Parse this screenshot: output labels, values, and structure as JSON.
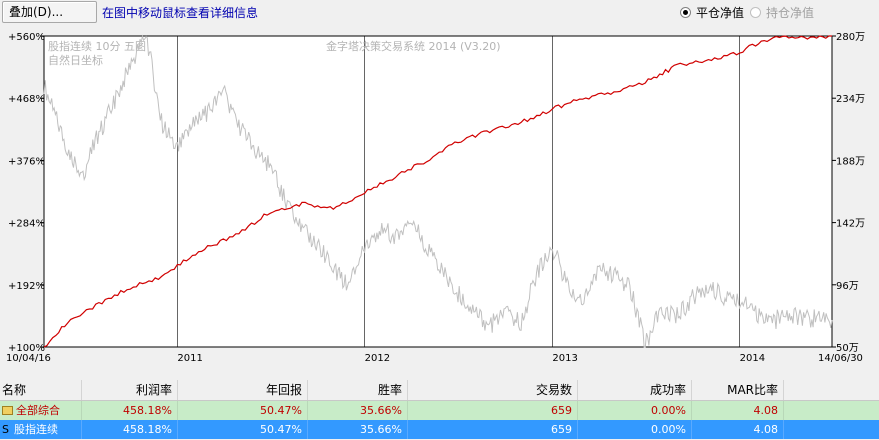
{
  "toolbar": {
    "overlay_label": "叠加(D)...",
    "hint_text": "在图中移动鼠标查看详细信息",
    "radio_closed": "平仓净值",
    "radio_open": "持仓净值",
    "radio_selected": "平仓净值"
  },
  "chart_data": {
    "type": "line",
    "title": "金字塔决策交易系统 2014 (V3.20)",
    "watermark_lines": [
      "股指连续 10分 五图",
      "自然日坐标"
    ],
    "x_start_label": "10/04/16",
    "x_end_label": "14/06/30",
    "x_tick_labels": [
      "2011",
      "2012",
      "2013",
      "2014"
    ],
    "left_axis": {
      "ticks": [
        "+560%",
        "+468%",
        "+376%",
        "+284%",
        "+192%",
        "+100%"
      ],
      "values": [
        560,
        468,
        376,
        284,
        192,
        100
      ],
      "range": [
        100,
        560
      ]
    },
    "right_axis": {
      "ticks": [
        "280万",
        "234万",
        "188万",
        "142万",
        "96万",
        "50万"
      ],
      "values": [
        280,
        234,
        188,
        142,
        96,
        50
      ],
      "range": [
        50,
        280
      ],
      "unit": "万"
    },
    "series": [
      {
        "color": "#d00000",
        "axis": "right",
        "x": [
          "2010-04-16",
          "2010-06-01",
          "2010-08-01",
          "2010-10-01",
          "2010-12-01",
          "2011-01-01",
          "2011-03-01",
          "2011-05-01",
          "2011-07-01",
          "2011-09-01",
          "2011-11-01",
          "2012-01-01",
          "2012-03-01",
          "2012-05-01",
          "2012-07-01",
          "2012-09-01",
          "2012-11-01",
          "2013-01-01",
          "2013-03-01",
          "2013-05-01",
          "2013-07-01",
          "2013-09-01",
          "2013-11-01",
          "2014-01-01",
          "2014-02-01",
          "2014-03-01",
          "2014-04-01",
          "2014-05-01",
          "2014-06-30"
        ],
        "values": [
          50,
          68,
          82,
          94,
          102,
          110,
          124,
          134,
          150,
          156,
          152,
          164,
          176,
          188,
          202,
          210,
          216,
          226,
          234,
          238,
          246,
          258,
          262,
          268,
          274,
          278,
          280,
          279,
          280
        ]
      },
      {
        "color": "#c0c0c0",
        "axis": "right",
        "x": [
          "2010-04-16",
          "2010-05-01",
          "2010-06-01",
          "2010-07-01",
          "2010-08-01",
          "2010-09-01",
          "2010-10-01",
          "2010-11-01",
          "2010-12-01",
          "2011-01-01",
          "2011-02-01",
          "2011-03-01",
          "2011-04-01",
          "2011-05-01",
          "2011-06-01",
          "2011-07-01",
          "2011-08-01",
          "2011-09-01",
          "2011-10-01",
          "2011-11-01",
          "2011-12-01",
          "2012-01-01",
          "2012-02-01",
          "2012-03-01",
          "2012-04-01",
          "2012-05-01",
          "2012-06-01",
          "2012-07-01",
          "2012-08-01",
          "2012-09-01",
          "2012-10-01",
          "2012-11-01",
          "2012-12-01",
          "2013-01-01",
          "2013-02-01",
          "2013-03-01",
          "2013-04-01",
          "2013-05-01",
          "2013-06-01",
          "2013-07-01",
          "2013-08-01",
          "2013-09-01",
          "2013-10-01",
          "2013-11-01",
          "2013-12-01",
          "2014-01-01",
          "2014-02-01",
          "2014-03-01",
          "2014-04-01",
          "2014-05-01",
          "2014-06-30"
        ],
        "values": [
          244,
          228,
          196,
          178,
          208,
          232,
          258,
          282,
          216,
          196,
          214,
          224,
          238,
          214,
          196,
          184,
          156,
          136,
          126,
          108,
          94,
          126,
          138,
          132,
          144,
          124,
          106,
          90,
          76,
          66,
          74,
          68,
          104,
          124,
          94,
          84,
          106,
          104,
          94,
          52,
          78,
          74,
          86,
          94,
          88,
          86,
          74,
          66,
          76,
          72,
          70
        ]
      }
    ]
  },
  "table": {
    "headers": [
      "名称",
      "利润率",
      "年回报",
      "胜率",
      "交易数",
      "成功率",
      "MAR比率"
    ],
    "rows": [
      {
        "icon": "folder-icon",
        "name": "全部综合",
        "values": [
          "458.18%",
          "50.47%",
          "35.66%",
          "659",
          "0.00%",
          "4.08"
        ]
      },
      {
        "icon": "s-icon",
        "icon_text": "S",
        "name": "股指连续",
        "values": [
          "458.18%",
          "50.47%",
          "35.66%",
          "659",
          "0.00%",
          "4.08"
        ]
      }
    ]
  },
  "colors": {
    "equity": "#d00000",
    "price": "#c0c0c0",
    "row1_bg": "#c8ecc8",
    "row1_text": "#c00000",
    "row2_bg": "#3399ff"
  }
}
